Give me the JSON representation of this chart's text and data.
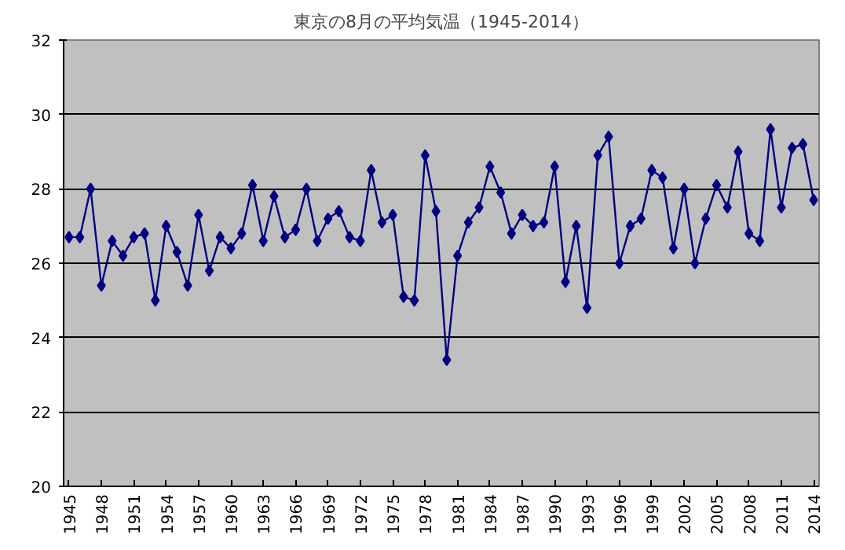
{
  "chart_data": {
    "type": "line",
    "title": "東京の8月の平均気温（1945-2014）",
    "x": [
      1945,
      1946,
      1947,
      1948,
      1949,
      1950,
      1951,
      1952,
      1953,
      1954,
      1955,
      1956,
      1957,
      1958,
      1959,
      1960,
      1961,
      1962,
      1963,
      1964,
      1965,
      1966,
      1967,
      1968,
      1969,
      1970,
      1971,
      1972,
      1973,
      1974,
      1975,
      1976,
      1977,
      1978,
      1979,
      1980,
      1981,
      1982,
      1983,
      1984,
      1985,
      1986,
      1987,
      1988,
      1989,
      1990,
      1991,
      1992,
      1993,
      1994,
      1995,
      1996,
      1997,
      1998,
      1999,
      2000,
      2001,
      2002,
      2003,
      2004,
      2005,
      2006,
      2007,
      2008,
      2009,
      2010,
      2011,
      2012,
      2013,
      2014
    ],
    "series": [
      {
        "color": "#000080",
        "values": [
          26.7,
          26.7,
          28.0,
          25.4,
          26.6,
          26.2,
          26.7,
          26.8,
          25.0,
          27.0,
          26.3,
          25.4,
          27.3,
          25.8,
          26.7,
          26.4,
          26.8,
          28.1,
          26.6,
          27.8,
          26.7,
          26.9,
          28.0,
          26.6,
          27.2,
          27.4,
          26.7,
          26.6,
          28.5,
          27.1,
          27.3,
          25.1,
          25.0,
          28.9,
          27.4,
          23.4,
          26.2,
          27.1,
          27.5,
          28.6,
          27.9,
          26.8,
          27.3,
          27.0,
          27.1,
          28.6,
          25.5,
          27.0,
          24.8,
          28.9,
          29.4,
          26.0,
          27.0,
          27.2,
          28.5,
          28.3,
          26.4,
          28.0,
          26.0,
          27.2,
          28.1,
          27.5,
          29.0,
          26.8,
          26.6,
          29.6,
          27.5,
          29.1,
          29.2,
          27.7
        ]
      }
    ],
    "xlim": [
      1944.5,
      2014.5
    ],
    "xticks": [
      1945,
      1948,
      1951,
      1954,
      1957,
      1960,
      1963,
      1966,
      1969,
      1972,
      1975,
      1978,
      1981,
      1984,
      1987,
      1990,
      1993,
      1996,
      1999,
      2002,
      2005,
      2008,
      2011,
      2014
    ],
    "ylim": [
      20,
      32
    ],
    "yticks": [
      20,
      22,
      24,
      26,
      28,
      30,
      32
    ],
    "grid": "y",
    "marker": "diamond",
    "line_style": "solid"
  }
}
